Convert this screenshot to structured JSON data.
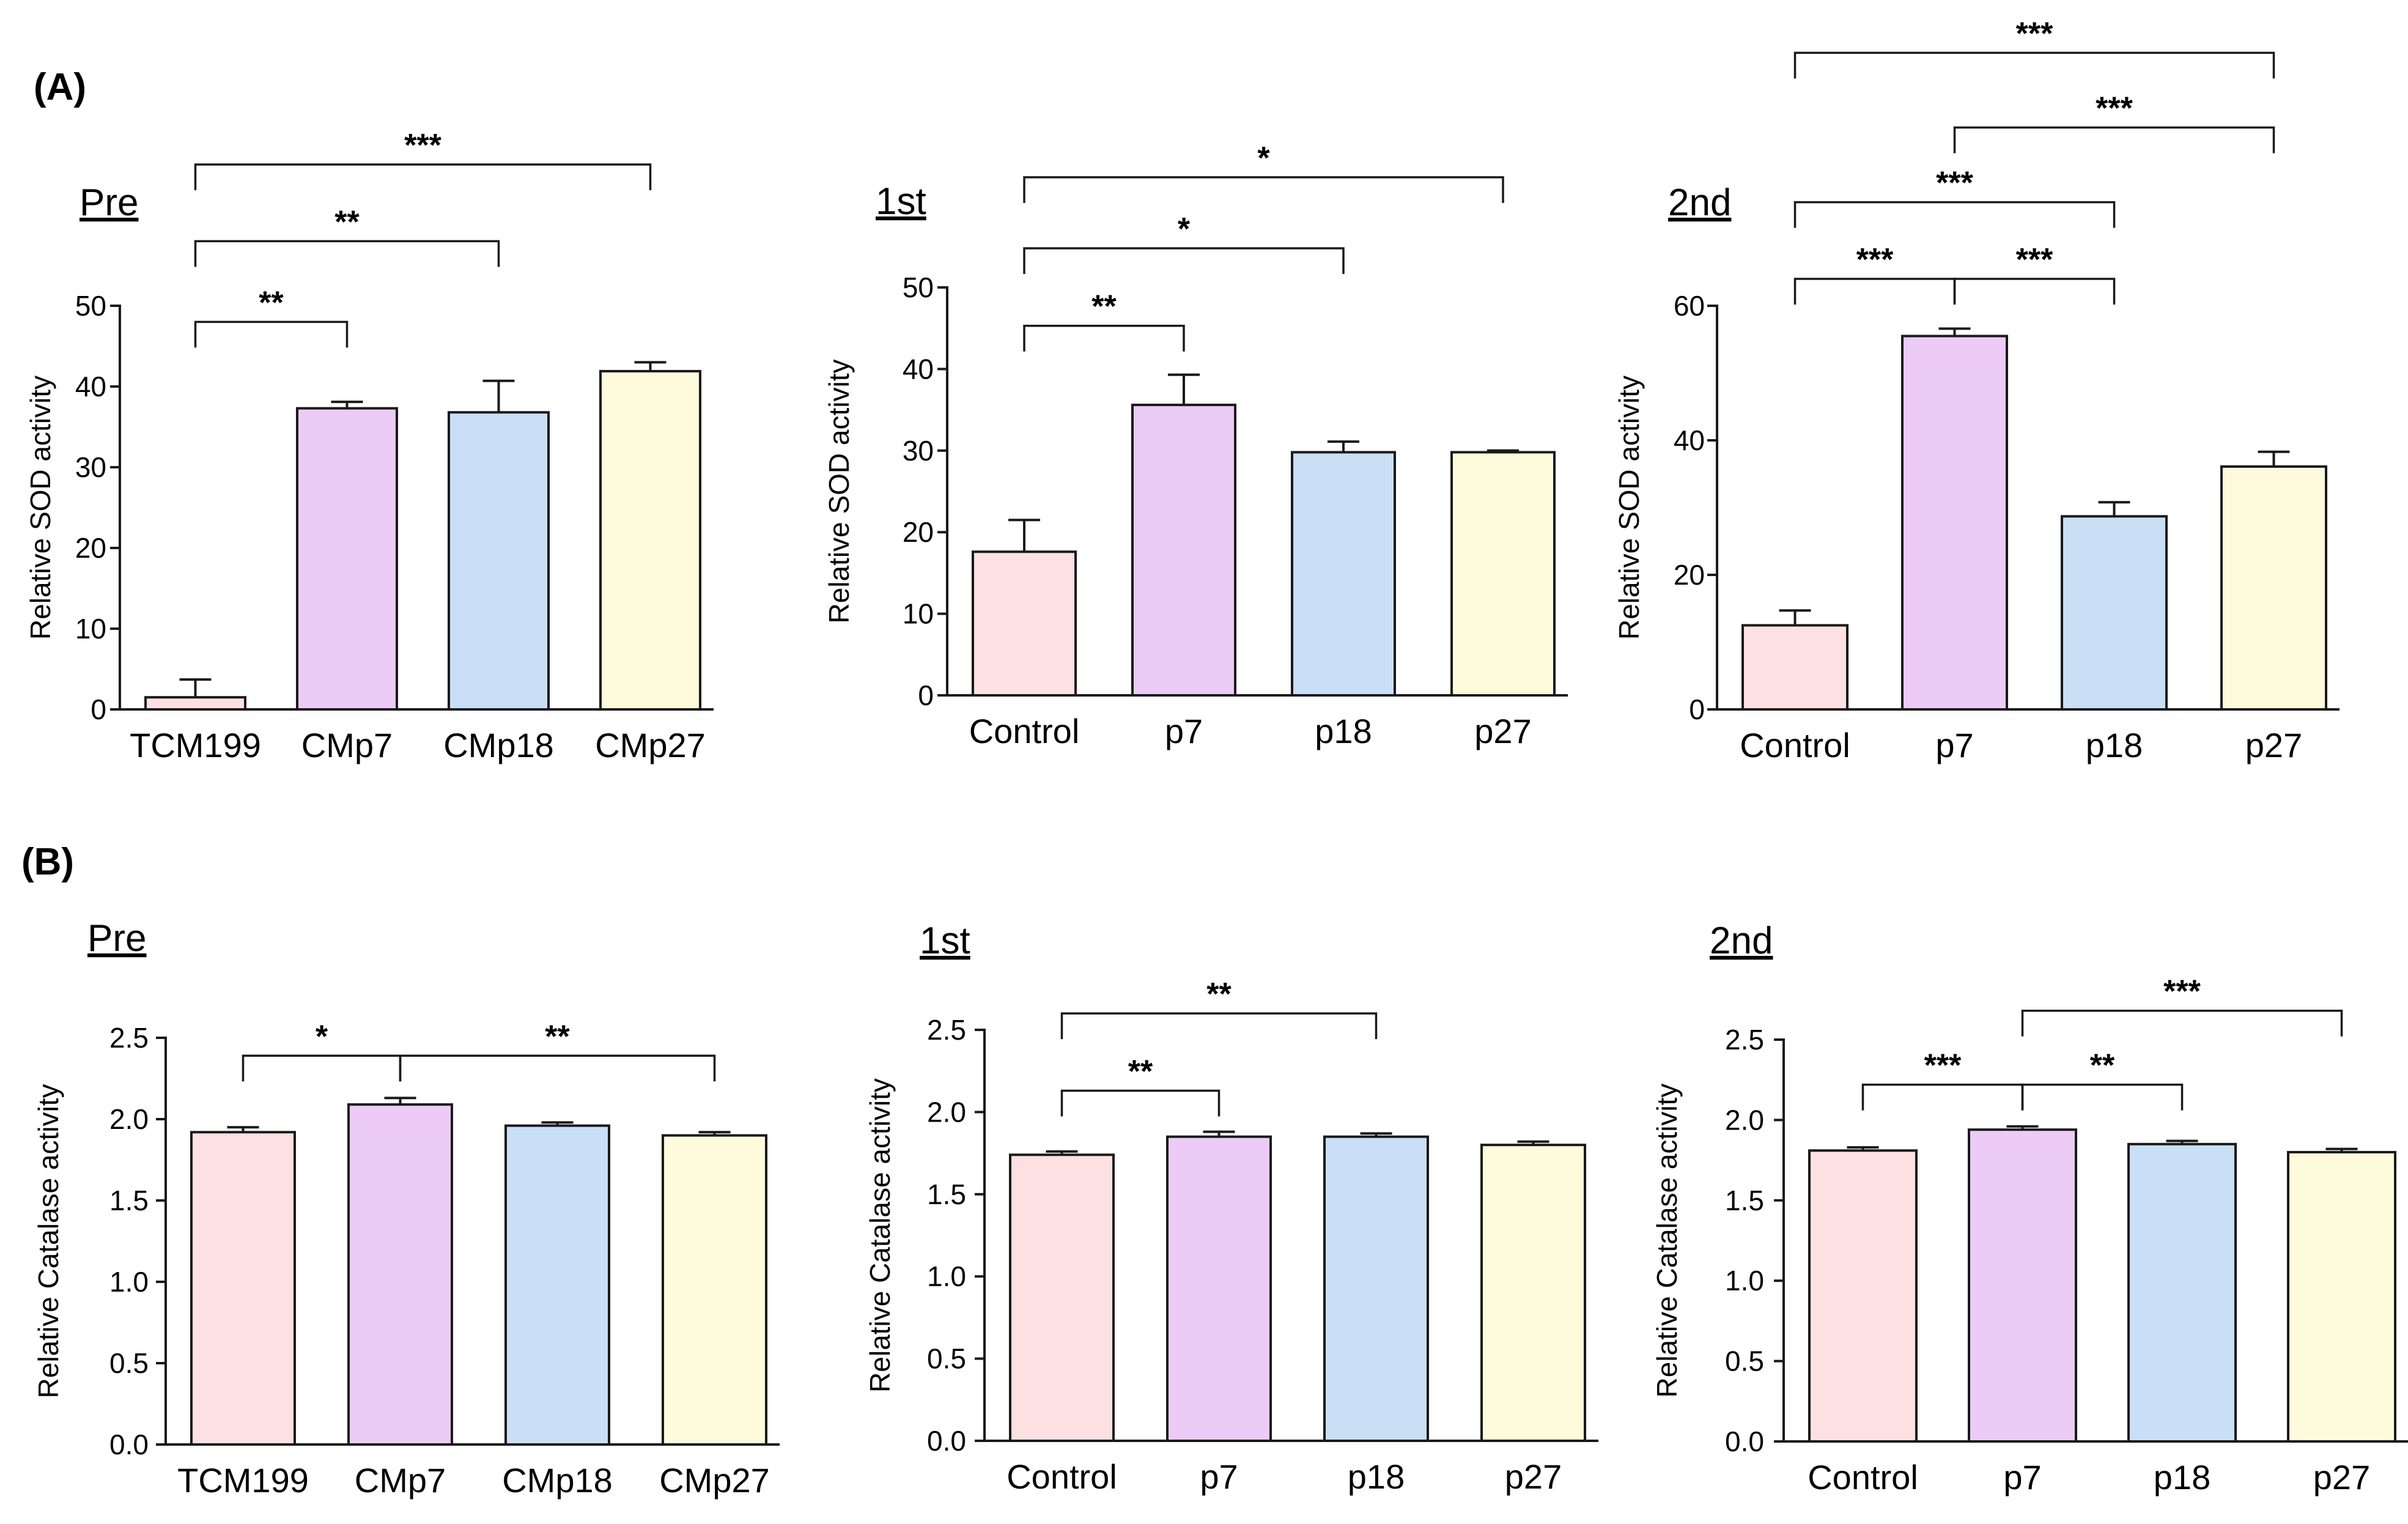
{
  "panel_labels": [
    "(A)",
    "(B)"
  ],
  "chart_data": [
    {
      "type": "bar",
      "title": "Pre",
      "ylabel": "Relative SOD activity",
      "xlabel": "",
      "categories": [
        "TCM199",
        "CMp7",
        "CMp18",
        "CMp27"
      ],
      "values": [
        1.5,
        37.3,
        36.8,
        41.9
      ],
      "errors": [
        2.2,
        0.8,
        3.9,
        1.1
      ],
      "ylim": [
        0,
        50
      ],
      "yticks": [
        0,
        10,
        20,
        30,
        40,
        50
      ],
      "ytick_labels": [
        "0",
        "10",
        "20",
        "30",
        "40",
        "50"
      ],
      "colors": [
        "#fde0e2",
        "#eccbf6",
        "#c9dff6",
        "#fdfbdc"
      ],
      "significance": [
        {
          "from": 0,
          "to": 1,
          "level": 48,
          "label": "**"
        },
        {
          "from": 0,
          "to": 2,
          "level": 58,
          "label": "**"
        },
        {
          "from": 0,
          "to": 3,
          "level": 67.5,
          "label": "***"
        }
      ]
    },
    {
      "type": "bar",
      "title": "1st",
      "ylabel": "Relative SOD activity",
      "xlabel": "",
      "categories": [
        "Control",
        "p7",
        "p18",
        "p27"
      ],
      "values": [
        17.6,
        35.6,
        29.8,
        29.8
      ],
      "errors": [
        3.9,
        3.7,
        1.3,
        0.2
      ],
      "ylim": [
        0,
        50
      ],
      "yticks": [
        0,
        10,
        20,
        30,
        40,
        50
      ],
      "ytick_labels": [
        "0",
        "10",
        "20",
        "30",
        "40",
        "50"
      ],
      "colors": [
        "#fde0e2",
        "#eccbf6",
        "#c9dff6",
        "#fdfbdc"
      ],
      "significance": [
        {
          "from": 0,
          "to": 1,
          "level": 45.3,
          "label": "**"
        },
        {
          "from": 0,
          "to": 2,
          "level": 54.8,
          "label": "*"
        },
        {
          "from": 0,
          "to": 3,
          "level": 63.5,
          "label": "*"
        }
      ]
    },
    {
      "type": "bar",
      "title": "2nd",
      "ylabel": "Relative SOD activity",
      "xlabel": "",
      "categories": [
        "Control",
        "p7",
        "p18",
        "p27"
      ],
      "values": [
        12.5,
        55.5,
        28.7,
        36.1
      ],
      "errors": [
        2.2,
        1.1,
        2.1,
        2.2
      ],
      "ylim": [
        0,
        60
      ],
      "yticks": [
        0,
        20,
        40,
        60
      ],
      "ytick_labels": [
        "0",
        "20",
        "40",
        "60"
      ],
      "colors": [
        "#fde0e2",
        "#eccbf6",
        "#c9dff6",
        "#fdfbdc"
      ],
      "significance": [
        {
          "from": 0,
          "to": 1,
          "level": 64,
          "label": "***"
        },
        {
          "from": 1,
          "to": 2,
          "level": 64,
          "label": "***"
        },
        {
          "from": 0,
          "to": 2,
          "level": 75.4,
          "label": "***"
        },
        {
          "from": 1,
          "to": 3,
          "level": 86.5,
          "label": "***"
        },
        {
          "from": 0,
          "to": 3,
          "level": 97.6,
          "label": "***"
        }
      ]
    },
    {
      "type": "bar",
      "title": "Pre",
      "ylabel": "Relative Catalase activity",
      "xlabel": "",
      "categories": [
        "TCM199",
        "CMp7",
        "CMp18",
        "CMp27"
      ],
      "values": [
        1.92,
        2.09,
        1.96,
        1.9
      ],
      "errors": [
        0.03,
        0.04,
        0.02,
        0.02
      ],
      "ylim": [
        0,
        2.5
      ],
      "yticks": [
        0,
        0.5,
        1.0,
        1.5,
        2.0,
        2.5
      ],
      "ytick_labels": [
        "0.0",
        "0.5",
        "1.0",
        "1.5",
        "2.0",
        "2.5"
      ],
      "colors": [
        "#fde0e2",
        "#eccbf6",
        "#c9dff6",
        "#fdfbdc"
      ],
      "significance": [
        {
          "from": 0,
          "to": 1,
          "level": 2.39,
          "label": "*"
        },
        {
          "from": 1,
          "to": 3,
          "level": 2.39,
          "label": "**"
        }
      ]
    },
    {
      "type": "bar",
      "title": "1st",
      "ylabel": "Relative Catalase activity",
      "xlabel": "",
      "categories": [
        "Control",
        "p7",
        "p18",
        "p27"
      ],
      "values": [
        1.74,
        1.85,
        1.85,
        1.8
      ],
      "errors": [
        0.02,
        0.03,
        0.02,
        0.02
      ],
      "ylim": [
        0,
        2.5
      ],
      "yticks": [
        0,
        0.5,
        1.0,
        1.5,
        2.0,
        2.5
      ],
      "ytick_labels": [
        "0.0",
        "0.5",
        "1.0",
        "1.5",
        "2.0",
        "2.5"
      ],
      "colors": [
        "#fde0e2",
        "#eccbf6",
        "#c9dff6",
        "#fdfbdc"
      ],
      "significance": [
        {
          "from": 0,
          "to": 1,
          "level": 2.13,
          "label": "**"
        },
        {
          "from": 0,
          "to": 2,
          "level": 2.6,
          "label": "**"
        }
      ]
    },
    {
      "type": "bar",
      "title": "2nd",
      "ylabel": "Relative Catalase activity",
      "xlabel": "",
      "categories": [
        "Control",
        "p7",
        "p18",
        "p27"
      ],
      "values": [
        1.81,
        1.94,
        1.85,
        1.8
      ],
      "errors": [
        0.02,
        0.02,
        0.02,
        0.02
      ],
      "ylim": [
        0,
        2.5
      ],
      "yticks": [
        0,
        0.5,
        1.0,
        1.5,
        2.0,
        2.5
      ],
      "ytick_labels": [
        "0.0",
        "0.5",
        "1.0",
        "1.5",
        "2.0",
        "2.5"
      ],
      "colors": [
        "#fde0e2",
        "#eccbf6",
        "#c9dff6",
        "#fdfbdc"
      ],
      "significance": [
        {
          "from": 0,
          "to": 1,
          "level": 2.22,
          "label": "***"
        },
        {
          "from": 1,
          "to": 2,
          "level": 2.22,
          "label": "**"
        },
        {
          "from": 1,
          "to": 3,
          "level": 2.68,
          "label": "***"
        }
      ]
    }
  ]
}
